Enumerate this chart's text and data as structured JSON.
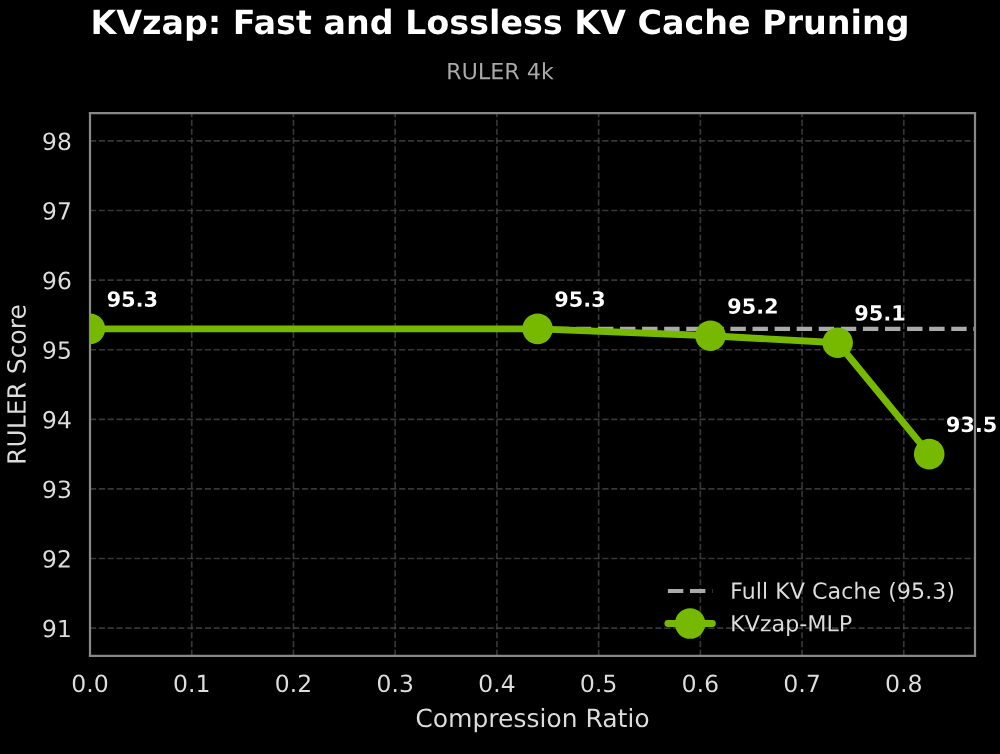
{
  "chart_data": {
    "type": "line",
    "title": "KVzap: Fast and Lossless KV Cache Pruning",
    "subtitle": "RULER 4k",
    "xlabel": "Compression Ratio",
    "ylabel": "RULER Score",
    "x": [
      0.0,
      0.44,
      0.61,
      0.735,
      0.825
    ],
    "series": [
      {
        "name": "KVzap-MLP",
        "color": "#76b900",
        "values": [
          95.3,
          95.3,
          95.2,
          95.1,
          93.5
        ]
      }
    ],
    "data_labels": true,
    "marker": "circle",
    "line_style": "solid",
    "ref_lines": [
      {
        "axis": "y",
        "value": 95.3,
        "label": "Full KV Cache (95.3)",
        "color": "#aaaaaa",
        "line_style": "dashed"
      }
    ],
    "xlim": [
      0.0,
      0.87
    ],
    "ylim": [
      90.6,
      98.4
    ],
    "xticks": [
      {
        "value": 0,
        "label": "0.0"
      },
      0.1,
      0.2,
      0.3,
      0.4,
      0.5,
      0.6,
      0.7,
      0.8
    ],
    "yticks": [
      91,
      92,
      93,
      94,
      95,
      96,
      97,
      98
    ],
    "grid": true,
    "legend": "bottom right"
  }
}
